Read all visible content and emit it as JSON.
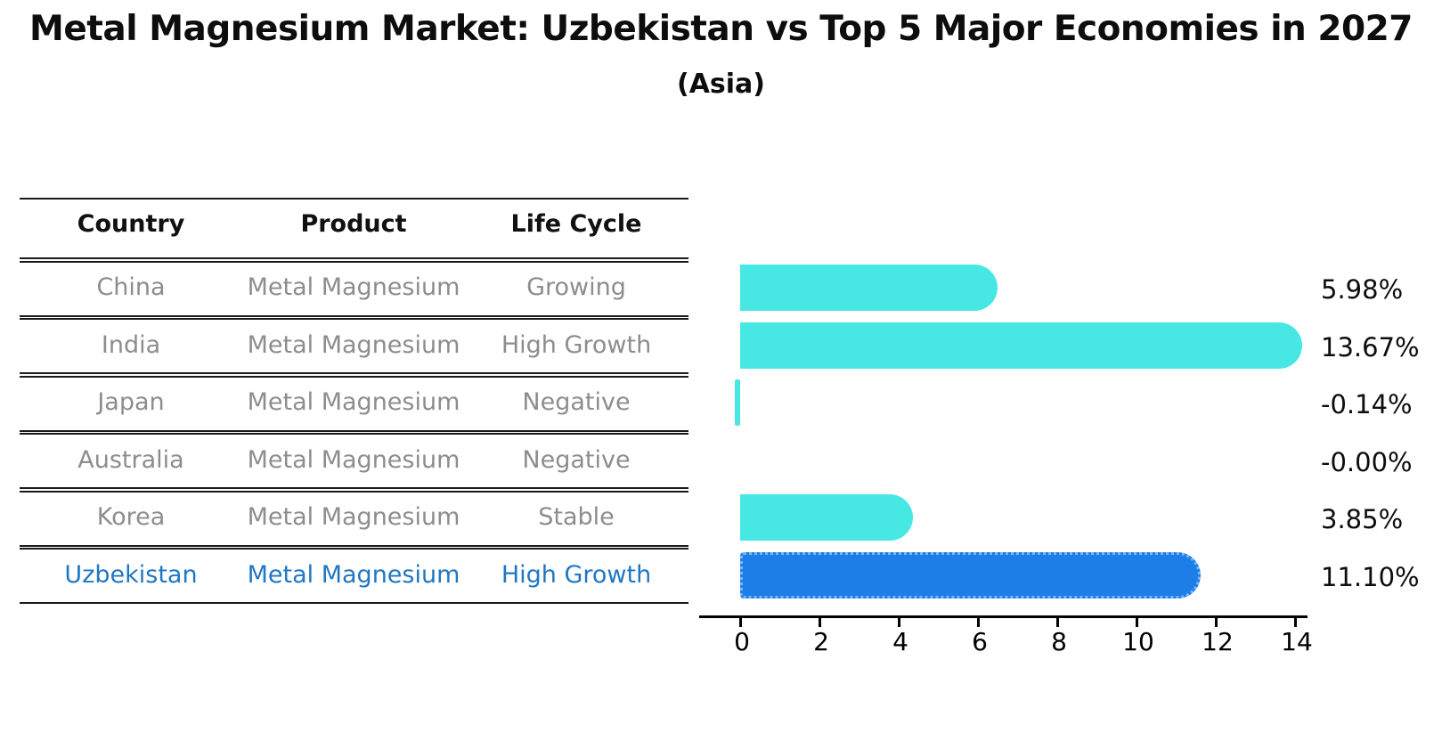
{
  "header": {
    "title": "Metal Magnesium Market: Uzbekistan vs Top 5 Major Economies in 2027",
    "subtitle": "(Asia)"
  },
  "table": {
    "columns": [
      "Country",
      "Product",
      "Life Cycle"
    ],
    "rows": [
      {
        "country": "China",
        "product": "Metal Magnesium",
        "life_cycle": "Growing",
        "highlight": false
      },
      {
        "country": "India",
        "product": "Metal Magnesium",
        "life_cycle": "High Growth",
        "highlight": false
      },
      {
        "country": "Japan",
        "product": "Metal Magnesium",
        "life_cycle": "Negative",
        "highlight": false
      },
      {
        "country": "Australia",
        "product": "Metal Magnesium",
        "life_cycle": "Negative",
        "highlight": false
      },
      {
        "country": "Korea",
        "product": "Metal Magnesium",
        "life_cycle": "Stable",
        "highlight": false
      },
      {
        "country": "Uzbekistan",
        "product": "Metal Magnesium",
        "life_cycle": "High Growth",
        "highlight": true
      }
    ]
  },
  "chart_data": {
    "type": "bar",
    "orientation": "horizontal",
    "title": "Metal Magnesium Market: Uzbekistan vs Top 5 Major Economies in 2027",
    "subtitle": "(Asia)",
    "categories": [
      "China",
      "India",
      "Japan",
      "Australia",
      "Korea",
      "Uzbekistan"
    ],
    "values": [
      5.98,
      13.67,
      -0.14,
      -0.0,
      3.85,
      11.1
    ],
    "value_labels": [
      "5.98%",
      "13.67%",
      "-0.14%",
      "-0.00%",
      "3.85%",
      "11.10%"
    ],
    "xlim": [
      0,
      14
    ],
    "xticks": [
      0,
      2,
      4,
      6,
      8,
      10,
      12,
      14
    ],
    "highlight_index": 5,
    "grid": false,
    "legend": null,
    "colors": {
      "bar": "#47E8E4",
      "highlight_bar": "#1E7EE8",
      "highlight_border": "#7ab6f5",
      "table_line": "#1a1a1a",
      "row_text": "#8d8d8d",
      "highlight_text": "#1f77c4",
      "value_text": "#0d0d0d",
      "axis": "#000000"
    }
  }
}
